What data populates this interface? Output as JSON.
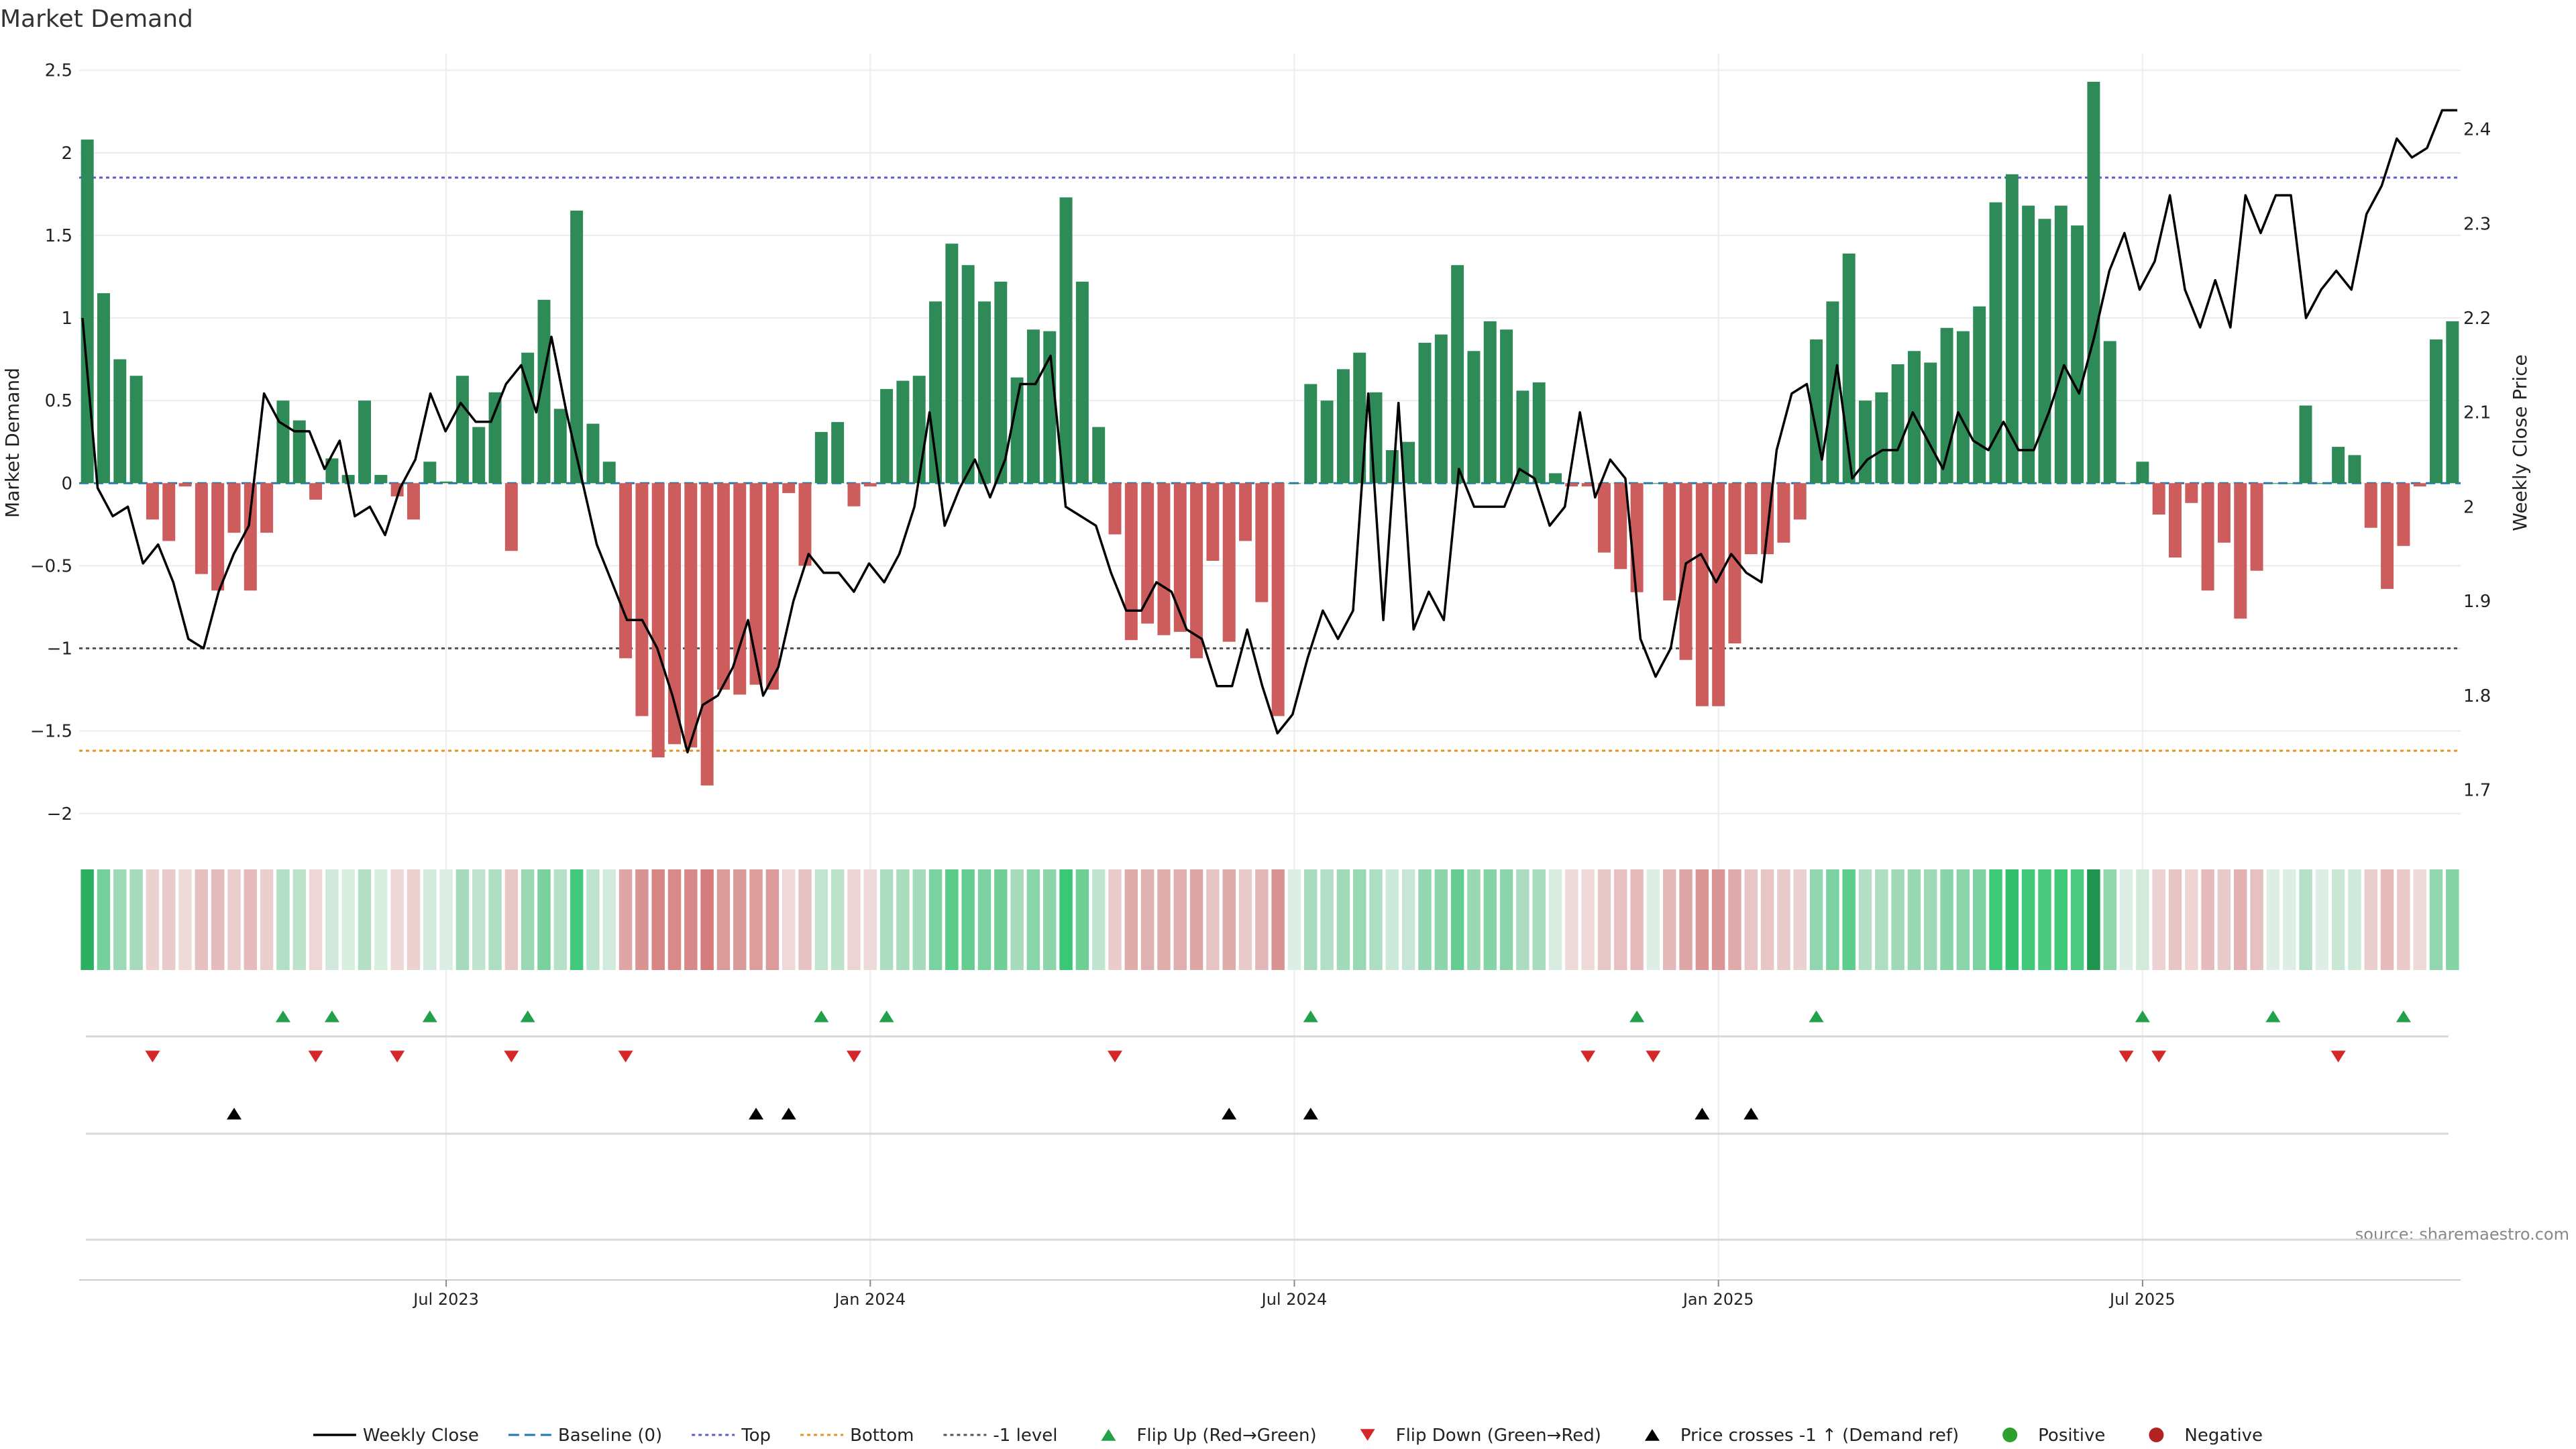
{
  "chart_data": {
    "type": "bar+line",
    "title": "Market Demand",
    "ylabel_left": "Market Demand",
    "ylabel_right": "Weekly Close Price",
    "ylim_left": [
      -2.2,
      2.6
    ],
    "ylim_right": [
      1.64,
      2.48
    ],
    "yticks_left": [
      2.5,
      2,
      1.5,
      1,
      0.5,
      0,
      -0.5,
      -1,
      -1.5,
      -2
    ],
    "yticks_left_labels": [
      "2.5",
      "2",
      "1.5",
      "1",
      "0.5",
      "0",
      "−0.5",
      "−1",
      "−1.5",
      "−2"
    ],
    "yticks_right": [
      2.4,
      2.3,
      2.2,
      2.1,
      2.0,
      1.9,
      1.8,
      1.7
    ],
    "yticks_right_labels": [
      "2.4",
      "2.3",
      "2.2",
      "2.1",
      "2",
      "1.9",
      "1.8",
      "1.7"
    ],
    "x_start": "2023-01-06",
    "x_step_days": 7,
    "x_ticks": [
      {
        "label": "Jul 2023",
        "index": 22
      },
      {
        "label": "Jan 2024",
        "index": 48
      },
      {
        "label": "Jul 2024",
        "index": 74
      },
      {
        "label": "Jan 2025",
        "index": 100
      },
      {
        "label": "Jul 2025",
        "index": 126
      }
    ],
    "reference_lines": [
      {
        "name": "Top",
        "value": 1.85,
        "color": "#5b5bcf"
      },
      {
        "name": "Bottom",
        "value": -1.62,
        "color": "#e39420"
      },
      {
        "name": "-1 level",
        "value": -1.0,
        "color": "#555555"
      },
      {
        "name": "Baseline (0)",
        "value": 0.0,
        "color": "#1f77b4"
      }
    ],
    "demand": [
      2.08,
      1.15,
      0.75,
      0.65,
      -0.22,
      -0.35,
      -0.02,
      -0.55,
      -0.65,
      -0.3,
      -0.65,
      -0.3,
      0.5,
      0.38,
      -0.1,
      0.15,
      0.05,
      0.5,
      0.05,
      -0.08,
      -0.22,
      0.13,
      0.01,
      0.65,
      0.34,
      0.55,
      -0.41,
      0.79,
      1.11,
      0.45,
      1.65,
      0.36,
      0.13,
      -1.06,
      -1.41,
      -1.66,
      -1.58,
      -1.6,
      -1.83,
      -1.25,
      -1.28,
      -1.22,
      -1.25,
      -0.06,
      -0.5,
      0.31,
      0.37,
      -0.14,
      -0.02,
      0.57,
      0.62,
      0.65,
      1.1,
      1.45,
      1.32,
      1.1,
      1.22,
      0.64,
      0.93,
      0.92,
      1.73,
      1.22,
      0.34,
      -0.31,
      -0.95,
      -0.85,
      -0.92,
      -0.9,
      -1.06,
      -0.47,
      -0.96,
      -0.35,
      -0.72,
      -1.41,
      0.0,
      0.6,
      0.5,
      0.69,
      0.79,
      0.55,
      0.2,
      0.25,
      0.85,
      0.9,
      1.32,
      0.8,
      0.98,
      0.93,
      0.56,
      0.61,
      0.06,
      -0.02,
      -0.02,
      -0.42,
      -0.52,
      -0.66,
      0.0,
      -0.71,
      -1.07,
      -1.35,
      -1.35,
      -0.97,
      -0.43,
      -0.43,
      -0.36,
      -0.22,
      0.87,
      1.1,
      1.39,
      0.5,
      0.55,
      0.72,
      0.8,
      0.73,
      0.94,
      0.92,
      1.07,
      1.7,
      1.87,
      1.68,
      1.6,
      1.68,
      1.56,
      2.43,
      0.86,
      0.0,
      0.13,
      -0.19,
      -0.45,
      -0.12,
      -0.65,
      -0.36,
      -0.82,
      -0.53,
      0.0,
      0.0,
      0.47,
      0.0,
      0.22,
      0.17,
      -0.27,
      -0.64,
      -0.38,
      -0.02,
      0.87,
      0.98
    ],
    "weekly_close": [
      2.2,
      2.02,
      1.99,
      2.0,
      1.94,
      1.96,
      1.92,
      1.86,
      1.85,
      1.91,
      1.95,
      1.98,
      2.12,
      2.09,
      2.08,
      2.08,
      2.04,
      2.07,
      1.99,
      2.0,
      1.97,
      2.02,
      2.05,
      2.12,
      2.08,
      2.11,
      2.09,
      2.09,
      2.13,
      2.15,
      2.1,
      2.18,
      2.1,
      2.03,
      1.96,
      1.92,
      1.88,
      1.88,
      1.85,
      1.8,
      1.74,
      1.79,
      1.8,
      1.83,
      1.88,
      1.8,
      1.83,
      1.9,
      1.95,
      1.93,
      1.93,
      1.91,
      1.94,
      1.92,
      1.95,
      2.0,
      2.1,
      1.98,
      2.02,
      2.05,
      2.01,
      2.05,
      2.13,
      2.13,
      2.16,
      2.0,
      1.99,
      1.98,
      1.93,
      1.89,
      1.89,
      1.92,
      1.91,
      1.87,
      1.86,
      1.81,
      1.81,
      1.87,
      1.81,
      1.76,
      1.78,
      1.84,
      1.89,
      1.86,
      1.89,
      2.12,
      1.88,
      2.11,
      1.87,
      1.91,
      1.88,
      2.04,
      2.0,
      2.0,
      2.0,
      2.04,
      2.03,
      1.98,
      2.0,
      2.1,
      2.01,
      2.05,
      2.03,
      1.86,
      1.82,
      1.85,
      1.94,
      1.95,
      1.92,
      1.95,
      1.93,
      1.92,
      2.06,
      2.12,
      2.13,
      2.05,
      2.15,
      2.03,
      2.05,
      2.06,
      2.06,
      2.1,
      2.07,
      2.04,
      2.1,
      2.07,
      2.06,
      2.09,
      2.06,
      2.06,
      2.1,
      2.15,
      2.12,
      2.18,
      2.25,
      2.29,
      2.23,
      2.26,
      2.33,
      2.23,
      2.19,
      2.24,
      2.19,
      2.33,
      2.29,
      2.33,
      2.33,
      2.2,
      2.23,
      2.25,
      2.23,
      2.31,
      2.34,
      2.39,
      2.37,
      2.38,
      2.42,
      2.42
    ],
    "flip_up_indices": [
      12,
      15,
      21,
      27,
      45,
      49,
      75,
      95,
      106,
      126,
      134,
      142
    ],
    "flip_down_indices": [
      4,
      14,
      19,
      26,
      33,
      47,
      63,
      92,
      96,
      125,
      127,
      138
    ],
    "price_cross_indices": [
      9,
      41,
      43,
      70,
      75,
      99,
      102
    ],
    "series_colors": {
      "positive_bar": "#2e8b57",
      "negative_bar": "#cd5c5c",
      "price_line": "#000000",
      "flip_up": "#22a04a",
      "flip_down": "#d62728",
      "price_cross": "#000000",
      "positive_dot": "#2ca02c",
      "negative_dot": "#b22222"
    }
  },
  "source_text": "source: sharemaestro.com",
  "legend": [
    {
      "label": "Weekly Close",
      "kind": "line",
      "color": "#000000"
    },
    {
      "label": "Baseline (0)",
      "kind": "dash",
      "color": "#1f77b4"
    },
    {
      "label": "Top",
      "kind": "dot",
      "color": "#5b5bcf"
    },
    {
      "label": "Bottom",
      "kind": "dot",
      "color": "#e39420"
    },
    {
      "label": "-1 level",
      "kind": "dot",
      "color": "#555555"
    },
    {
      "label": "Flip Up (Red→Green)",
      "kind": "tri-up",
      "color": "#22a04a"
    },
    {
      "label": "Flip Down (Green→Red)",
      "kind": "tri-down",
      "color": "#d62728"
    },
    {
      "label": "Price crosses -1 ↑ (Demand ref)",
      "kind": "tri-up",
      "color": "#000000"
    },
    {
      "label": "Positive",
      "kind": "circle",
      "color": "#2ca02c"
    },
    {
      "label": "Negative",
      "kind": "circle",
      "color": "#b22222"
    }
  ]
}
